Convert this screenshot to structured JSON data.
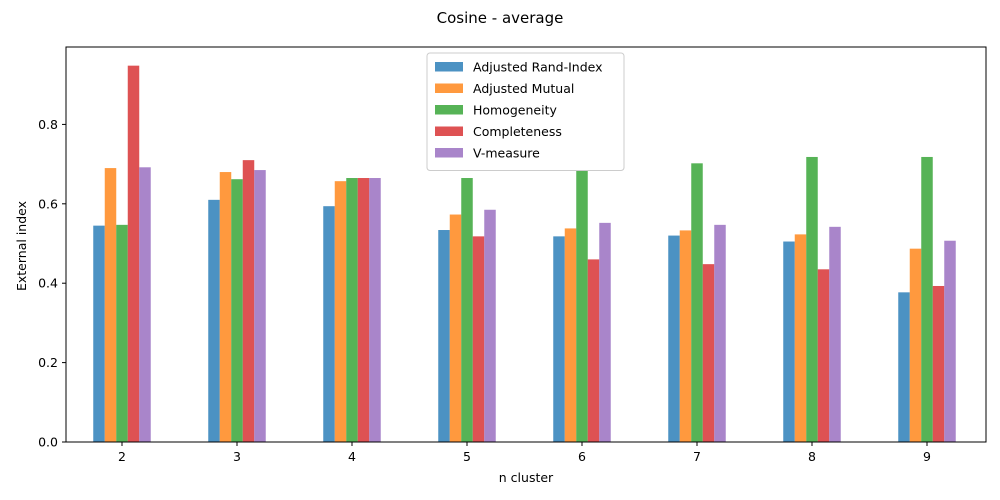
{
  "chart_data": {
    "type": "bar",
    "title": "Cosine - average",
    "xlabel": "n cluster",
    "ylabel": "External index",
    "categories": [
      "2",
      "3",
      "4",
      "5",
      "6",
      "7",
      "8",
      "9"
    ],
    "ylim": [
      0,
      0.995
    ],
    "yticks": [
      "0.0",
      "0.2",
      "0.4",
      "0.6",
      "0.8"
    ],
    "legend_position": "top-center",
    "grid": false,
    "series": [
      {
        "name": "Adjusted Rand-Index",
        "color": "#1f77b4",
        "values": [
          0.545,
          0.61,
          0.594,
          0.534,
          0.518,
          0.52,
          0.505,
          0.377
        ]
      },
      {
        "name": "Adjusted Mutual",
        "color": "#ff7f0e",
        "values": [
          0.69,
          0.68,
          0.657,
          0.573,
          0.538,
          0.533,
          0.523,
          0.487
        ]
      },
      {
        "name": "Homogeneity",
        "color": "#2ca02c",
        "values": [
          0.547,
          0.662,
          0.665,
          0.665,
          0.685,
          0.702,
          0.718,
          0.718
        ]
      },
      {
        "name": "Completeness",
        "color": "#d62728",
        "values": [
          0.948,
          0.71,
          0.665,
          0.518,
          0.46,
          0.448,
          0.435,
          0.393
        ]
      },
      {
        "name": "V-measure",
        "color": "#9467bd",
        "values": [
          0.692,
          0.685,
          0.665,
          0.585,
          0.552,
          0.547,
          0.542,
          0.507
        ]
      }
    ]
  }
}
